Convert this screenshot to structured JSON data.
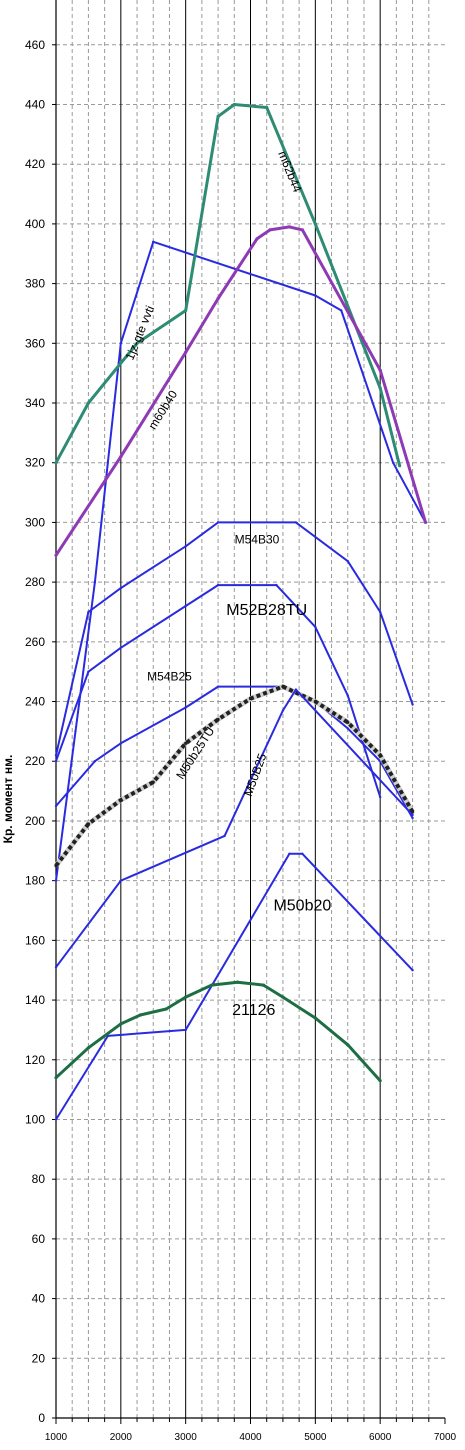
{
  "chart_data": {
    "type": "line",
    "title": "",
    "xlabel": "",
    "ylabel": "Кр. момент нм.",
    "xlim": [
      1000,
      7000
    ],
    "ylim": [
      0,
      475
    ],
    "x_ticks": [
      1000,
      2000,
      3000,
      4000,
      5000,
      6000,
      7000
    ],
    "y_ticks": [
      0,
      20,
      40,
      60,
      80,
      100,
      120,
      140,
      160,
      180,
      200,
      220,
      240,
      260,
      280,
      300,
      320,
      340,
      360,
      380,
      400,
      420,
      440,
      460
    ],
    "grid": true,
    "series": [
      {
        "name": "1jz-gte vvti",
        "color": "#2a2ae0",
        "width": 2,
        "dashed": false,
        "x": [
          1000,
          1300,
          1600,
          2000,
          2500,
          5000,
          5400,
          6200,
          6700
        ],
        "y": [
          180,
          230,
          280,
          360,
          394,
          376,
          371,
          320,
          300
        ]
      },
      {
        "name": "m62b44",
        "color": "#2e8b74",
        "width": 3,
        "dashed": false,
        "x": [
          1000,
          1500,
          2250,
          3000,
          3500,
          3750,
          4250,
          5000,
          6000,
          6300
        ],
        "y": [
          320,
          340,
          360,
          371,
          436,
          440,
          439,
          400,
          345,
          319
        ]
      },
      {
        "name": "m60b40",
        "color": "#8e3ab5",
        "width": 3,
        "dashed": false,
        "x": [
          1000,
          2000,
          3000,
          3500,
          4100,
          4300,
          4600,
          4800,
          6000,
          6700
        ],
        "y": [
          289,
          322,
          357,
          375,
          395,
          398,
          399,
          398,
          351,
          300
        ]
      },
      {
        "name": "M54B30",
        "color": "#2a2ae0",
        "width": 2,
        "dashed": false,
        "x": [
          1000,
          1500,
          2000,
          3000,
          3500,
          4700,
          5500,
          6000,
          6500
        ],
        "y": [
          222,
          270,
          278,
          292,
          300,
          300,
          287,
          270,
          239
        ]
      },
      {
        "name": "M52B28TU",
        "color": "#2a2ae0",
        "width": 2,
        "dashed": false,
        "x": [
          1000,
          1500,
          2000,
          3000,
          3500,
          4400,
          5000,
          5500,
          6000
        ],
        "y": [
          220,
          250,
          258,
          272,
          279,
          279,
          265,
          242,
          208
        ]
      },
      {
        "name": "M54B25",
        "color": "#2a2ae0",
        "width": 2,
        "dashed": false,
        "x": [
          1000,
          1600,
          2000,
          3000,
          3500,
          4500,
          5000,
          5500,
          6000,
          6500
        ],
        "y": [
          205,
          220,
          226,
          238,
          245,
          245,
          240,
          231,
          220,
          201
        ]
      },
      {
        "name": "M50b25TU",
        "color": "#222222",
        "width": 3,
        "dashed": true,
        "x": [
          1000,
          1500,
          2000,
          2500,
          3000,
          3500,
          4000,
          4500,
          5000,
          5500,
          6000,
          6500
        ],
        "y": [
          185,
          199,
          207,
          213,
          226,
          234,
          241,
          245,
          240,
          233,
          222,
          203
        ]
      },
      {
        "name": "M50B25",
        "color": "#2a2ae0",
        "width": 2,
        "dashed": false,
        "x": [
          1000,
          2000,
          3600,
          4500,
          4700,
          6500
        ],
        "y": [
          151,
          180,
          195,
          237,
          244,
          202
        ]
      },
      {
        "name": "M50b20",
        "color": "#2a2ae0",
        "width": 2,
        "dashed": false,
        "x": [
          1000,
          1800,
          3000,
          4600,
          4800,
          6500
        ],
        "y": [
          100,
          128,
          130,
          189,
          189,
          150
        ]
      },
      {
        "name": "21126",
        "color": "#1e6e44",
        "width": 3,
        "dashed": false,
        "x": [
          1000,
          1500,
          2000,
          2300,
          2700,
          3000,
          3400,
          3800,
          4200,
          4500,
          5000,
          5500,
          6000
        ],
        "y": [
          114,
          124,
          132,
          135,
          137,
          141,
          145,
          146,
          145,
          141,
          134,
          125,
          113
        ]
      }
    ],
    "annotations": [
      {
        "text": "1jz-gte vvti",
        "x": 2350,
        "y": 363,
        "rotate": -68,
        "size": 12
      },
      {
        "text": "m62b44",
        "x": 4550,
        "y": 417,
        "rotate": 68,
        "size": 12
      },
      {
        "text": "m60b40",
        "x": 2700,
        "y": 337,
        "rotate": -58,
        "size": 12
      },
      {
        "text": "M54B30",
        "x": 4100,
        "y": 293,
        "rotate": 0,
        "size": 12
      },
      {
        "text": "M52B28TU",
        "x": 4250,
        "y": 269,
        "rotate": 0,
        "size": 16
      },
      {
        "text": "M54B25",
        "x": 2750,
        "y": 247,
        "rotate": 0,
        "size": 12
      },
      {
        "text": "M50b25TU",
        "x": 3200,
        "y": 222,
        "rotate": -57,
        "size": 12
      },
      {
        "text": "M50B25",
        "x": 4130,
        "y": 215,
        "rotate": -70,
        "size": 12
      },
      {
        "text": "M50b20",
        "x": 4800,
        "y": 170,
        "rotate": 0,
        "size": 16
      },
      {
        "text": "21126",
        "x": 4050,
        "y": 135,
        "rotate": 0,
        "size": 16
      }
    ]
  }
}
